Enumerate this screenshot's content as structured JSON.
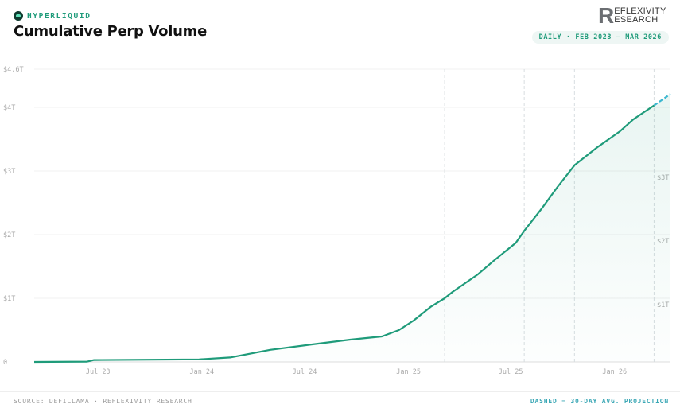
{
  "header": {
    "brand": "HYPERLIQUID",
    "title": "Cumulative Perp Volume",
    "logo_letter": "R",
    "logo_line1": "EFLEXIVITY",
    "logo_line2": "ESEARCH",
    "range_pill": "DAILY · FEB 2023 – MAR 2026"
  },
  "footer": {
    "source": "SOURCE: DEFILLAMA · REFLEXIVITY RESEARCH",
    "note": "DASHED = 30-DAY AVG. PROJECTION"
  },
  "colors": {
    "line": "#1f9b7a",
    "projection": "#3ab7d0",
    "brand": "#1f9b7a"
  },
  "chart_data": {
    "type": "line",
    "title": "Cumulative Perp Volume",
    "xlabel": "",
    "ylabel": "",
    "ylim": [
      0,
      4.6
    ],
    "y_unit": "trillion USD",
    "y_ticks": [
      {
        "v": 0,
        "label": "0"
      },
      {
        "v": 1,
        "label": "$1T"
      },
      {
        "v": 2,
        "label": "$2T"
      },
      {
        "v": 3,
        "label": "$3T"
      },
      {
        "v": 4,
        "label": "$4T"
      },
      {
        "v": 4.6,
        "label": "$4.6T"
      }
    ],
    "right_ticks": [
      {
        "v": 1,
        "label": "$1T"
      },
      {
        "v": 2,
        "label": "$2T"
      },
      {
        "v": 3,
        "label": "$3T"
      }
    ],
    "x_ticks": [
      {
        "d": "2023-07-01",
        "label": "Jul 23"
      },
      {
        "d": "2024-01-01",
        "label": "Jan 24"
      },
      {
        "d": "2024-07-01",
        "label": "Jul 24"
      },
      {
        "d": "2025-01-01",
        "label": "Jan 25"
      },
      {
        "d": "2025-07-01",
        "label": "Jul 25"
      },
      {
        "d": "2026-01-01",
        "label": "Jan 26"
      }
    ],
    "xlim": [
      "2023-03-10",
      "2026-04-10"
    ],
    "grid": true,
    "event_markers": [
      "2025-03-06",
      "2025-07-25",
      "2025-10-22",
      "2026-03-12"
    ],
    "series": [
      {
        "style": "solid",
        "points": [
          [
            "2023-03-10",
            0
          ],
          [
            "2023-06-12",
            0.005
          ],
          [
            "2023-06-24",
            0.03
          ],
          [
            "2023-12-27",
            0.04
          ],
          [
            "2024-02-20",
            0.07
          ],
          [
            "2024-05-01",
            0.19
          ],
          [
            "2024-07-10",
            0.27
          ],
          [
            "2024-09-20",
            0.35
          ],
          [
            "2024-11-15",
            0.4
          ],
          [
            "2024-12-15",
            0.5
          ],
          [
            "2025-01-10",
            0.65
          ],
          [
            "2025-02-10",
            0.87
          ],
          [
            "2025-03-06",
            1.0
          ],
          [
            "2025-03-20",
            1.1
          ],
          [
            "2025-05-03",
            1.37
          ],
          [
            "2025-06-01",
            1.59
          ],
          [
            "2025-07-10",
            1.87
          ],
          [
            "2025-07-25",
            2.06
          ],
          [
            "2025-08-25",
            2.41
          ],
          [
            "2025-09-22",
            2.75
          ],
          [
            "2025-10-22",
            3.09
          ],
          [
            "2025-12-01",
            3.37
          ],
          [
            "2026-01-10",
            3.62
          ],
          [
            "2026-02-03",
            3.81
          ],
          [
            "2026-02-18",
            3.9
          ],
          [
            "2026-03-12",
            4.03
          ]
        ]
      },
      {
        "style": "dashed",
        "points": [
          [
            "2026-03-12",
            4.03
          ],
          [
            "2026-04-10",
            4.21
          ]
        ]
      }
    ]
  }
}
